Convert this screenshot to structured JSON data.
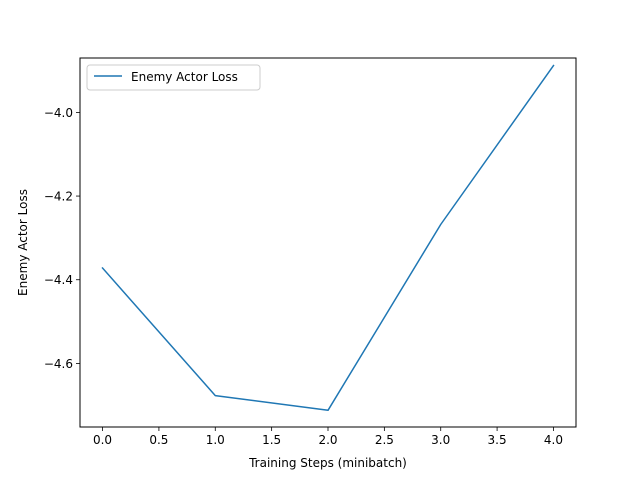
{
  "chart_data": {
    "type": "line",
    "xlabel": "Training Steps (minibatch)",
    "ylabel": "Enemy Actor Loss",
    "xlim": [
      -0.2,
      4.2
    ],
    "ylim": [
      -4.752,
      -3.87
    ],
    "xticks": [
      0.0,
      0.5,
      1.0,
      1.5,
      2.0,
      2.5,
      3.0,
      3.5,
      4.0
    ],
    "xtick_labels": [
      "0.0",
      "0.5",
      "1.0",
      "1.5",
      "2.0",
      "2.5",
      "3.0",
      "3.5",
      "4.0"
    ],
    "yticks": [
      -4.6,
      -4.4,
      -4.2,
      -4.0
    ],
    "ytick_labels": [
      "−4.6",
      "−4.4",
      "−4.2",
      "−4.0"
    ],
    "grid": false,
    "legend_position": "upper-left",
    "series": [
      {
        "name": "Enemy Actor Loss",
        "color": "#1f77b4",
        "x": [
          0,
          1,
          2,
          3,
          4
        ],
        "y": [
          -4.372,
          -4.677,
          -4.712,
          -4.268,
          -3.888
        ]
      }
    ]
  }
}
